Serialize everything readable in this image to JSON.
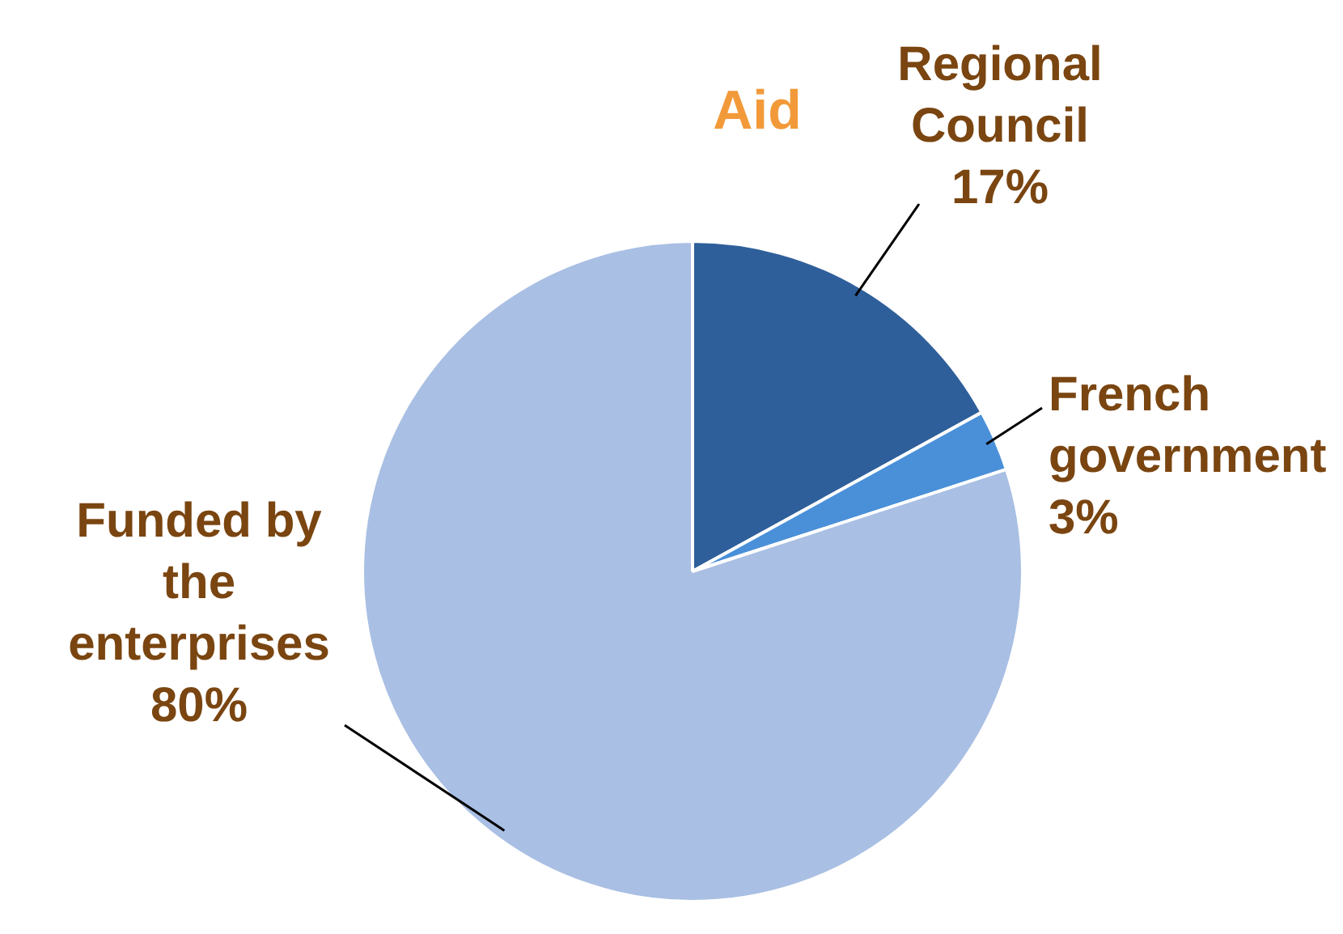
{
  "chart_data": {
    "type": "pie",
    "title": "Aid",
    "categories": [
      "Regional Council",
      "French government",
      "Funded by the enterprises"
    ],
    "values": [
      17,
      3,
      80
    ],
    "value_labels": [
      "17%",
      "3%",
      "80%"
    ],
    "colors": [
      "#2e5f9a",
      "#4a90d9",
      "#a9bfe3"
    ],
    "legend": false
  }
}
